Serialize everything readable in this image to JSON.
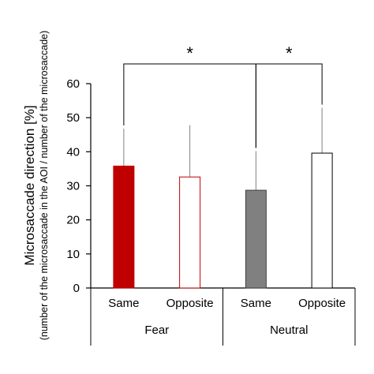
{
  "chart_data": {
    "type": "bar",
    "ylabel": "Microsaccade direction [%]",
    "ylabel_sub": "(number of the microsaccade in the AOI / number of the microsaccade)",
    "ylim": [
      0,
      60
    ],
    "yticks": [
      0,
      10,
      20,
      30,
      40,
      50,
      60
    ],
    "groups": [
      {
        "label": "Fear",
        "bars": [
          {
            "label": "Same",
            "value": 35.8,
            "error": 11.0,
            "fill": "#c00000",
            "stroke": "#c00000"
          },
          {
            "label": "Opposite",
            "value": 32.6,
            "error": 15.2,
            "fill": "#ffffff",
            "stroke": "#c00000"
          }
        ]
      },
      {
        "label": "Neutral",
        "bars": [
          {
            "label": "Same",
            "value": 28.7,
            "error": 11.5,
            "fill": "#808080",
            "stroke": "#404040"
          },
          {
            "label": "Opposite",
            "value": 39.6,
            "error": 13.3,
            "fill": "#ffffff",
            "stroke": "#000000"
          }
        ]
      }
    ],
    "significance": [
      {
        "from": [
          0,
          0
        ],
        "to": [
          1,
          0
        ],
        "label": "*"
      },
      {
        "from": [
          1,
          0
        ],
        "to": [
          1,
          1
        ],
        "label": "*"
      }
    ],
    "grid": false,
    "legend": "none"
  }
}
